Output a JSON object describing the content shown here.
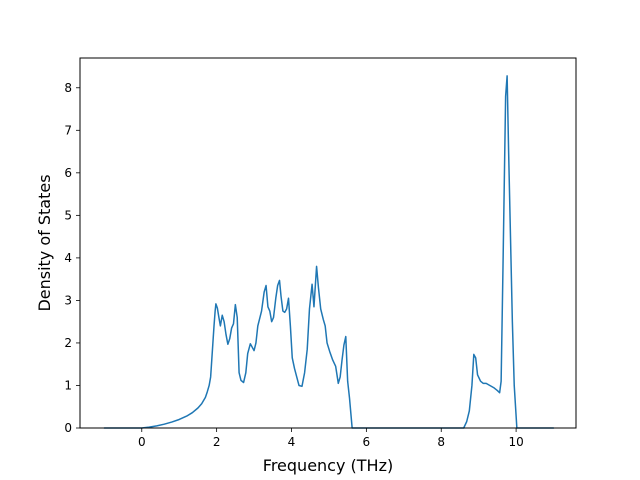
{
  "chart_data": {
    "type": "line",
    "title": "",
    "xlabel": "Frequency (THz)",
    "ylabel": "Density of States",
    "xlim": [
      -1.65,
      11.6
    ],
    "ylim": [
      0,
      8.7
    ],
    "xticks": [
      0,
      2,
      4,
      6,
      8,
      10
    ],
    "yticks": [
      0,
      1,
      2,
      3,
      4,
      5,
      6,
      7,
      8
    ],
    "grid": false,
    "legend": "none",
    "colors": {
      "line": "#1f77b4",
      "axes": "#000000",
      "background": "#ffffff"
    },
    "series": [
      {
        "points": [
          [
            -1.0,
            0.0
          ],
          [
            0.0,
            0.0
          ],
          [
            0.2,
            0.02
          ],
          [
            0.4,
            0.05
          ],
          [
            0.6,
            0.09
          ],
          [
            0.8,
            0.14
          ],
          [
            1.0,
            0.2
          ],
          [
            1.2,
            0.28
          ],
          [
            1.35,
            0.36
          ],
          [
            1.5,
            0.47
          ],
          [
            1.6,
            0.57
          ],
          [
            1.7,
            0.72
          ],
          [
            1.75,
            0.85
          ],
          [
            1.8,
            1.0
          ],
          [
            1.84,
            1.2
          ],
          [
            1.87,
            1.6
          ],
          [
            1.9,
            2.0
          ],
          [
            1.93,
            2.4
          ],
          [
            1.96,
            2.75
          ],
          [
            1.98,
            2.92
          ],
          [
            2.02,
            2.82
          ],
          [
            2.06,
            2.6
          ],
          [
            2.1,
            2.4
          ],
          [
            2.15,
            2.65
          ],
          [
            2.2,
            2.5
          ],
          [
            2.25,
            2.2
          ],
          [
            2.3,
            1.97
          ],
          [
            2.35,
            2.1
          ],
          [
            2.4,
            2.35
          ],
          [
            2.45,
            2.45
          ],
          [
            2.5,
            2.9
          ],
          [
            2.55,
            2.6
          ],
          [
            2.6,
            1.3
          ],
          [
            2.65,
            1.12
          ],
          [
            2.72,
            1.07
          ],
          [
            2.78,
            1.3
          ],
          [
            2.83,
            1.75
          ],
          [
            2.9,
            1.98
          ],
          [
            2.95,
            1.9
          ],
          [
            3.0,
            1.82
          ],
          [
            3.05,
            2.0
          ],
          [
            3.1,
            2.4
          ],
          [
            3.2,
            2.75
          ],
          [
            3.27,
            3.2
          ],
          [
            3.32,
            3.35
          ],
          [
            3.37,
            2.85
          ],
          [
            3.42,
            2.75
          ],
          [
            3.47,
            2.5
          ],
          [
            3.52,
            2.6
          ],
          [
            3.58,
            3.05
          ],
          [
            3.63,
            3.35
          ],
          [
            3.68,
            3.47
          ],
          [
            3.72,
            3.1
          ],
          [
            3.77,
            2.75
          ],
          [
            3.82,
            2.72
          ],
          [
            3.87,
            2.8
          ],
          [
            3.92,
            3.05
          ],
          [
            3.97,
            2.4
          ],
          [
            4.02,
            1.65
          ],
          [
            4.08,
            1.4
          ],
          [
            4.14,
            1.2
          ],
          [
            4.2,
            1.0
          ],
          [
            4.28,
            0.98
          ],
          [
            4.35,
            1.3
          ],
          [
            4.42,
            1.85
          ],
          [
            4.48,
            2.8
          ],
          [
            4.55,
            3.38
          ],
          [
            4.6,
            2.85
          ],
          [
            4.67,
            3.8
          ],
          [
            4.72,
            3.3
          ],
          [
            4.78,
            2.8
          ],
          [
            4.85,
            2.55
          ],
          [
            4.9,
            2.4
          ],
          [
            4.95,
            2.0
          ],
          [
            5.02,
            1.8
          ],
          [
            5.1,
            1.6
          ],
          [
            5.18,
            1.45
          ],
          [
            5.25,
            1.05
          ],
          [
            5.3,
            1.2
          ],
          [
            5.35,
            1.6
          ],
          [
            5.4,
            1.95
          ],
          [
            5.45,
            2.15
          ],
          [
            5.5,
            1.1
          ],
          [
            5.55,
            0.7
          ],
          [
            5.62,
            0.0
          ],
          [
            8.6,
            0.0
          ],
          [
            8.68,
            0.15
          ],
          [
            8.75,
            0.4
          ],
          [
            8.82,
            1.0
          ],
          [
            8.87,
            1.73
          ],
          [
            8.92,
            1.65
          ],
          [
            8.97,
            1.25
          ],
          [
            9.05,
            1.1
          ],
          [
            9.12,
            1.05
          ],
          [
            9.2,
            1.05
          ],
          [
            9.3,
            1.0
          ],
          [
            9.4,
            0.95
          ],
          [
            9.5,
            0.88
          ],
          [
            9.56,
            0.83
          ],
          [
            9.6,
            1.1
          ],
          [
            9.65,
            3.8
          ],
          [
            9.72,
            7.8
          ],
          [
            9.76,
            8.28
          ],
          [
            9.8,
            6.5
          ],
          [
            9.85,
            4.5
          ],
          [
            9.9,
            2.5
          ],
          [
            9.95,
            1.0
          ],
          [
            10.02,
            0.0
          ],
          [
            11.0,
            0.0
          ]
        ]
      }
    ]
  }
}
